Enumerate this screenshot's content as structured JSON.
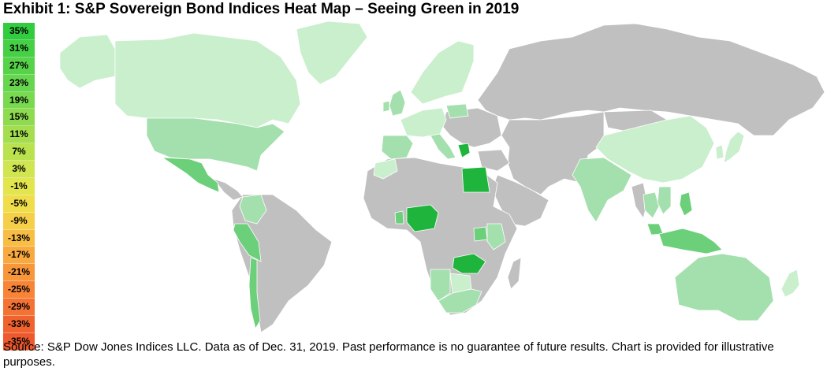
{
  "title": "Exhibit 1: S&P Sovereign Bond Indices Heat Map – Seeing Green in 2019",
  "source": "Source: S&P Dow Jones Indices LLC. Data as of Dec. 31, 2019. Past performance is no guarantee of future results. Chart is provided for illustrative purposes.",
  "colors": {
    "no_data": "#c0c0c0",
    "strong_green": "#1fb43c",
    "mid_green": "#6ccf7a",
    "light_green": "#a3e0ad",
    "pale_green": "#c9efcd"
  },
  "chart_data": {
    "type": "heatmap",
    "map_type": "world choropleth",
    "legend": {
      "labels": [
        "35%",
        "31%",
        "27%",
        "23%",
        "19%",
        "15%",
        "11%",
        "7%",
        "3%",
        "-1%",
        "-5%",
        "-9%",
        "-13%",
        "-17%",
        "-21%",
        "-25%",
        "-29%",
        "-33%",
        "-35%"
      ],
      "colors": [
        "#32cd3f",
        "#45d045",
        "#57d34a",
        "#67d64f",
        "#79d94f",
        "#8edb4f",
        "#a4de4f",
        "#bae24f",
        "#d0e550",
        "#e3e54f",
        "#f0dd4c",
        "#f6cf48",
        "#f8bd44",
        "#f8a93f",
        "#f8963b",
        "#f78437",
        "#f47233",
        "#f0632f",
        "#ee5a2d"
      ]
    },
    "regions": [
      {
        "name": "Alaska",
        "level": "pale"
      },
      {
        "name": "Canada",
        "level": "pale"
      },
      {
        "name": "Greenland",
        "level": "pale"
      },
      {
        "name": "United States",
        "level": "light"
      },
      {
        "name": "Mexico",
        "level": "mid"
      },
      {
        "name": "Colombia",
        "level": "light"
      },
      {
        "name": "Peru",
        "level": "mid"
      },
      {
        "name": "Chile",
        "level": "mid"
      },
      {
        "name": "Norway",
        "level": "pale"
      },
      {
        "name": "Sweden",
        "level": "pale"
      },
      {
        "name": "Finland",
        "level": "pale"
      },
      {
        "name": "United Kingdom",
        "level": "light"
      },
      {
        "name": "Ireland",
        "level": "light"
      },
      {
        "name": "France",
        "level": "pale"
      },
      {
        "name": "Spain",
        "level": "light"
      },
      {
        "name": "Portugal",
        "level": "light"
      },
      {
        "name": "Germany",
        "level": "pale"
      },
      {
        "name": "Poland",
        "level": "light"
      },
      {
        "name": "Italy",
        "level": "light"
      },
      {
        "name": "Greece",
        "level": "strong"
      },
      {
        "name": "Morocco",
        "level": "pale"
      },
      {
        "name": "Egypt",
        "level": "strong"
      },
      {
        "name": "Ghana",
        "level": "mid"
      },
      {
        "name": "Nigeria",
        "level": "strong"
      },
      {
        "name": "Kenya",
        "level": "light"
      },
      {
        "name": "Uganda",
        "level": "mid"
      },
      {
        "name": "Zambia",
        "level": "strong"
      },
      {
        "name": "Namibia",
        "level": "light"
      },
      {
        "name": "Botswana",
        "level": "pale"
      },
      {
        "name": "South Africa",
        "level": "light"
      },
      {
        "name": "China",
        "level": "pale"
      },
      {
        "name": "Japan",
        "level": "pale"
      },
      {
        "name": "South Korea",
        "level": "pale"
      },
      {
        "name": "India",
        "level": "light"
      },
      {
        "name": "Thailand",
        "level": "light"
      },
      {
        "name": "Vietnam",
        "level": "light"
      },
      {
        "name": "Philippines",
        "level": "mid"
      },
      {
        "name": "Malaysia",
        "level": "mid"
      },
      {
        "name": "Indonesia",
        "level": "mid"
      },
      {
        "name": "Australia",
        "level": "light"
      },
      {
        "name": "New Zealand",
        "level": "pale"
      }
    ]
  }
}
